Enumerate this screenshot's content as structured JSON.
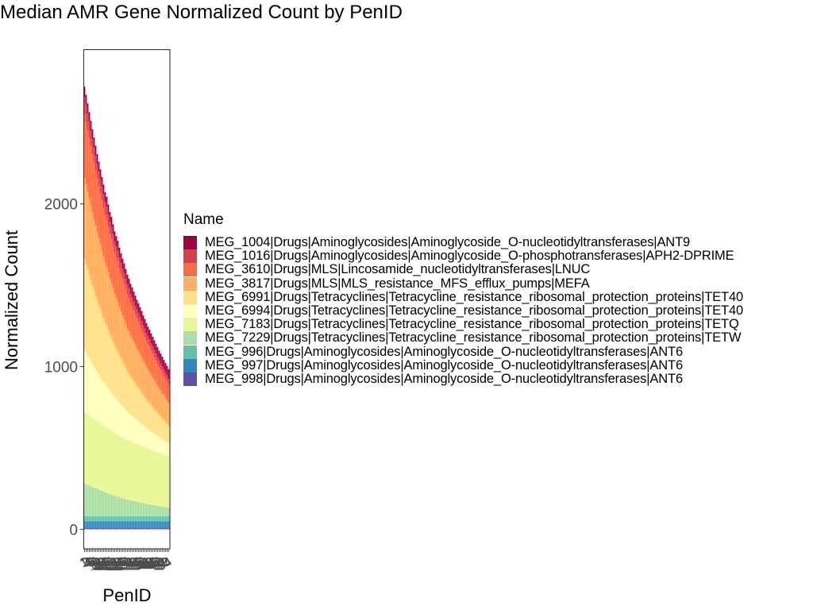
{
  "chart_data": {
    "type": "bar",
    "stacked": true,
    "title": "Median AMR Gene Normalized Count by PenID",
    "xlabel": "PenID",
    "ylabel": "Normalized Count",
    "ylim": [
      -120,
      2950
    ],
    "yticks": [
      0,
      1000,
      2000
    ],
    "ytick_labels": [
      "0",
      "1000",
      "2000"
    ],
    "grid": false,
    "legend_title": "Name",
    "legend_position": "right",
    "x_tick_labels_legible": false,
    "categories": [
      "1",
      "2",
      "3",
      "4",
      "5",
      "6",
      "7",
      "8",
      "9",
      "10",
      "11",
      "12",
      "13",
      "14",
      "15",
      "16",
      "17",
      "18",
      "19",
      "20",
      "21",
      "22",
      "23",
      "24",
      "25",
      "26",
      "27",
      "28",
      "29",
      "30",
      "31",
      "32",
      "33",
      "34",
      "35",
      "36",
      "37",
      "38",
      "39",
      "40",
      "41",
      "42",
      "43",
      "44",
      "45",
      "46",
      "47",
      "48",
      "49",
      "50",
      "51",
      "52",
      "53",
      "54"
    ],
    "series": [
      {
        "name": "MEG_1004|Drugs|Aminoglycosides|Aminoglycoside_O-nucleotidyltransferases|ANT9",
        "color": "#9E0142",
        "values": [
          60,
          60,
          60,
          60,
          60,
          60,
          60,
          60,
          60,
          60,
          60,
          60,
          60,
          60,
          60,
          60,
          60,
          60,
          60,
          60,
          60,
          60,
          60,
          60,
          60,
          60,
          60,
          60,
          60,
          60,
          60,
          60,
          60,
          60,
          60,
          60,
          60,
          60,
          60,
          60,
          60,
          60,
          60,
          60,
          60,
          60,
          60,
          60,
          60,
          60,
          60,
          60,
          60,
          60
        ]
      },
      {
        "name": "MEG_1016|Drugs|Aminoglycosides|Aminoglycoside_O-phosphotransferases|APH2-DPRIME",
        "color": "#D53E4F",
        "values": [
          110,
          108,
          105,
          100,
          98,
          96,
          94,
          92,
          90,
          88,
          86,
          84,
          82,
          80,
          80,
          78,
          76,
          75,
          74,
          72,
          70,
          70,
          68,
          66,
          65,
          64,
          62,
          60,
          60,
          58,
          58,
          56,
          55,
          54,
          54,
          52,
          52,
          50,
          50,
          48,
          48,
          46,
          46,
          45,
          44,
          44,
          42,
          42,
          40,
          40,
          40,
          38,
          38,
          36
        ]
      },
      {
        "name": "MEG_3610|Drugs|MLS|Lincosamide_nucleotidyltransferases|LNUC",
        "color": "#F46D43",
        "values": [
          390,
          384,
          376,
          370,
          360,
          352,
          345,
          338,
          330,
          322,
          315,
          308,
          300,
          292,
          288,
          280,
          272,
          268,
          260,
          252,
          248,
          244,
          236,
          230,
          224,
          220,
          214,
          208,
          204,
          200,
          196,
          192,
          188,
          184,
          180,
          176,
          172,
          168,
          164,
          160,
          156,
          154,
          150,
          146,
          142,
          138,
          134,
          130,
          128,
          124,
          120,
          118,
          114,
          110
        ]
      },
      {
        "name": "MEG_3817|Drugs|MLS|MLS_resistance_MFS_efflux_pumps|MEFA",
        "color": "#FDAE61",
        "values": [
          500,
          490,
          480,
          470,
          460,
          450,
          440,
          430,
          420,
          410,
          400,
          390,
          380,
          370,
          365,
          355,
          345,
          340,
          330,
          320,
          315,
          310,
          300,
          292,
          285,
          280,
          272,
          264,
          258,
          252,
          248,
          242,
          236,
          230,
          226,
          222,
          216,
          210,
          206,
          200,
          196,
          192,
          186,
          182,
          178,
          172,
          168,
          164,
          160,
          156,
          152,
          148,
          144,
          140
        ]
      },
      {
        "name": "MEG_6991|Drugs|Tetracyclines|Tetracycline_resistance_ribosomal_protection_proteins|TET40",
        "color": "#FEE08B",
        "values": [
          560,
          545,
          530,
          515,
          500,
          485,
          470,
          455,
          440,
          428,
          415,
          402,
          390,
          378,
          370,
          358,
          346,
          338,
          326,
          316,
          308,
          300,
          290,
          282,
          274,
          266,
          258,
          250,
          244,
          236,
          230,
          224,
          218,
          212,
          206,
          200,
          194,
          188,
          182,
          176,
          170,
          166,
          160,
          156,
          150,
          146,
          142,
          136,
          132,
          128,
          124,
          120,
          116,
          112
        ]
      },
      {
        "name": "MEG_6994|Drugs|Tetracyclines|Tetracycline_resistance_ribosomal_protection_proteins|TET40",
        "color": "#FFFFBF",
        "values": [
          380,
          370,
          360,
          350,
          340,
          330,
          320,
          311,
          302,
          294,
          286,
          278,
          270,
          262,
          256,
          248,
          240,
          234,
          226,
          220,
          214,
          208,
          202,
          196,
          190,
          184,
          178,
          172,
          168,
          162,
          158,
          154,
          150,
          146,
          142,
          138,
          134,
          130,
          126,
          122,
          118,
          115,
          112,
          108,
          105,
          102,
          99,
          96,
          93,
          90,
          87,
          84,
          81,
          78
        ]
      },
      {
        "name": "MEG_7183|Drugs|Tetracyclines|Tetracycline_resistance_ribosomal_protection_proteins|TETQ",
        "color": "#E6F598",
        "values": [
          440,
          437,
          434,
          431,
          428,
          425,
          422,
          419,
          416,
          413,
          410,
          407,
          404,
          401,
          399,
          396,
          393,
          391,
          388,
          385,
          383,
          381,
          378,
          376,
          374,
          372,
          370,
          368,
          366,
          364,
          362,
          360,
          358,
          356,
          354,
          352,
          350,
          348,
          346,
          344,
          342,
          340,
          338,
          336,
          334,
          332,
          330,
          328,
          326,
          324,
          322,
          320,
          318,
          316
        ]
      },
      {
        "name": "MEG_7229|Drugs|Tetracyclines|Tetracycline_resistance_ribosomal_protection_proteins|TETW",
        "color": "#ABDDA4",
        "values": [
          200,
          196,
          192,
          188,
          184,
          180,
          176,
          172,
          168,
          164,
          160,
          156,
          152,
          148,
          145,
          141,
          137,
          134,
          130,
          126,
          123,
          120,
          117,
          114,
          111,
          108,
          105,
          102,
          100,
          97,
          95,
          93,
          91,
          89,
          87,
          85,
          83,
          81,
          79,
          77,
          75,
          74,
          72,
          70,
          68,
          66,
          64,
          62,
          61,
          59,
          57,
          55,
          54,
          52
        ]
      },
      {
        "name": "MEG_996|Drugs|Aminoglycosides|Aminoglycoside_O-nucleotidyltransferases|ANT6",
        "color": "#66C2A5",
        "values": [
          30,
          30,
          30,
          30,
          30,
          30,
          30,
          30,
          30,
          30,
          30,
          30,
          30,
          30,
          30,
          30,
          30,
          30,
          30,
          30,
          30,
          30,
          30,
          30,
          30,
          30,
          30,
          30,
          30,
          30,
          30,
          30,
          30,
          30,
          30,
          30,
          30,
          30,
          30,
          30,
          30,
          30,
          30,
          30,
          30,
          30,
          30,
          30,
          30,
          30,
          30,
          30,
          30,
          30
        ]
      },
      {
        "name": "MEG_997|Drugs|Aminoglycosides|Aminoglycoside_O-nucleotidyltransferases|ANT6",
        "color": "#3288BD",
        "values": [
          40,
          40,
          40,
          40,
          40,
          40,
          40,
          40,
          40,
          40,
          40,
          40,
          40,
          40,
          40,
          40,
          40,
          40,
          40,
          40,
          40,
          40,
          40,
          40,
          40,
          40,
          40,
          40,
          40,
          40,
          40,
          40,
          40,
          40,
          40,
          40,
          40,
          40,
          40,
          40,
          40,
          40,
          40,
          40,
          40,
          40,
          40,
          40,
          40,
          40,
          40,
          40,
          40,
          40
        ]
      },
      {
        "name": "MEG_998|Drugs|Aminoglycosides|Aminoglycoside_O-nucleotidyltransferases|ANT6",
        "color": "#5E4FA2",
        "values": [
          10,
          10,
          10,
          10,
          10,
          10,
          10,
          10,
          10,
          10,
          10,
          10,
          10,
          10,
          10,
          10,
          10,
          10,
          10,
          10,
          10,
          10,
          10,
          10,
          10,
          10,
          10,
          10,
          10,
          10,
          10,
          10,
          10,
          10,
          10,
          10,
          10,
          10,
          10,
          10,
          10,
          10,
          10,
          10,
          10,
          10,
          10,
          10,
          10,
          10,
          10,
          10,
          10,
          10
        ]
      }
    ]
  }
}
